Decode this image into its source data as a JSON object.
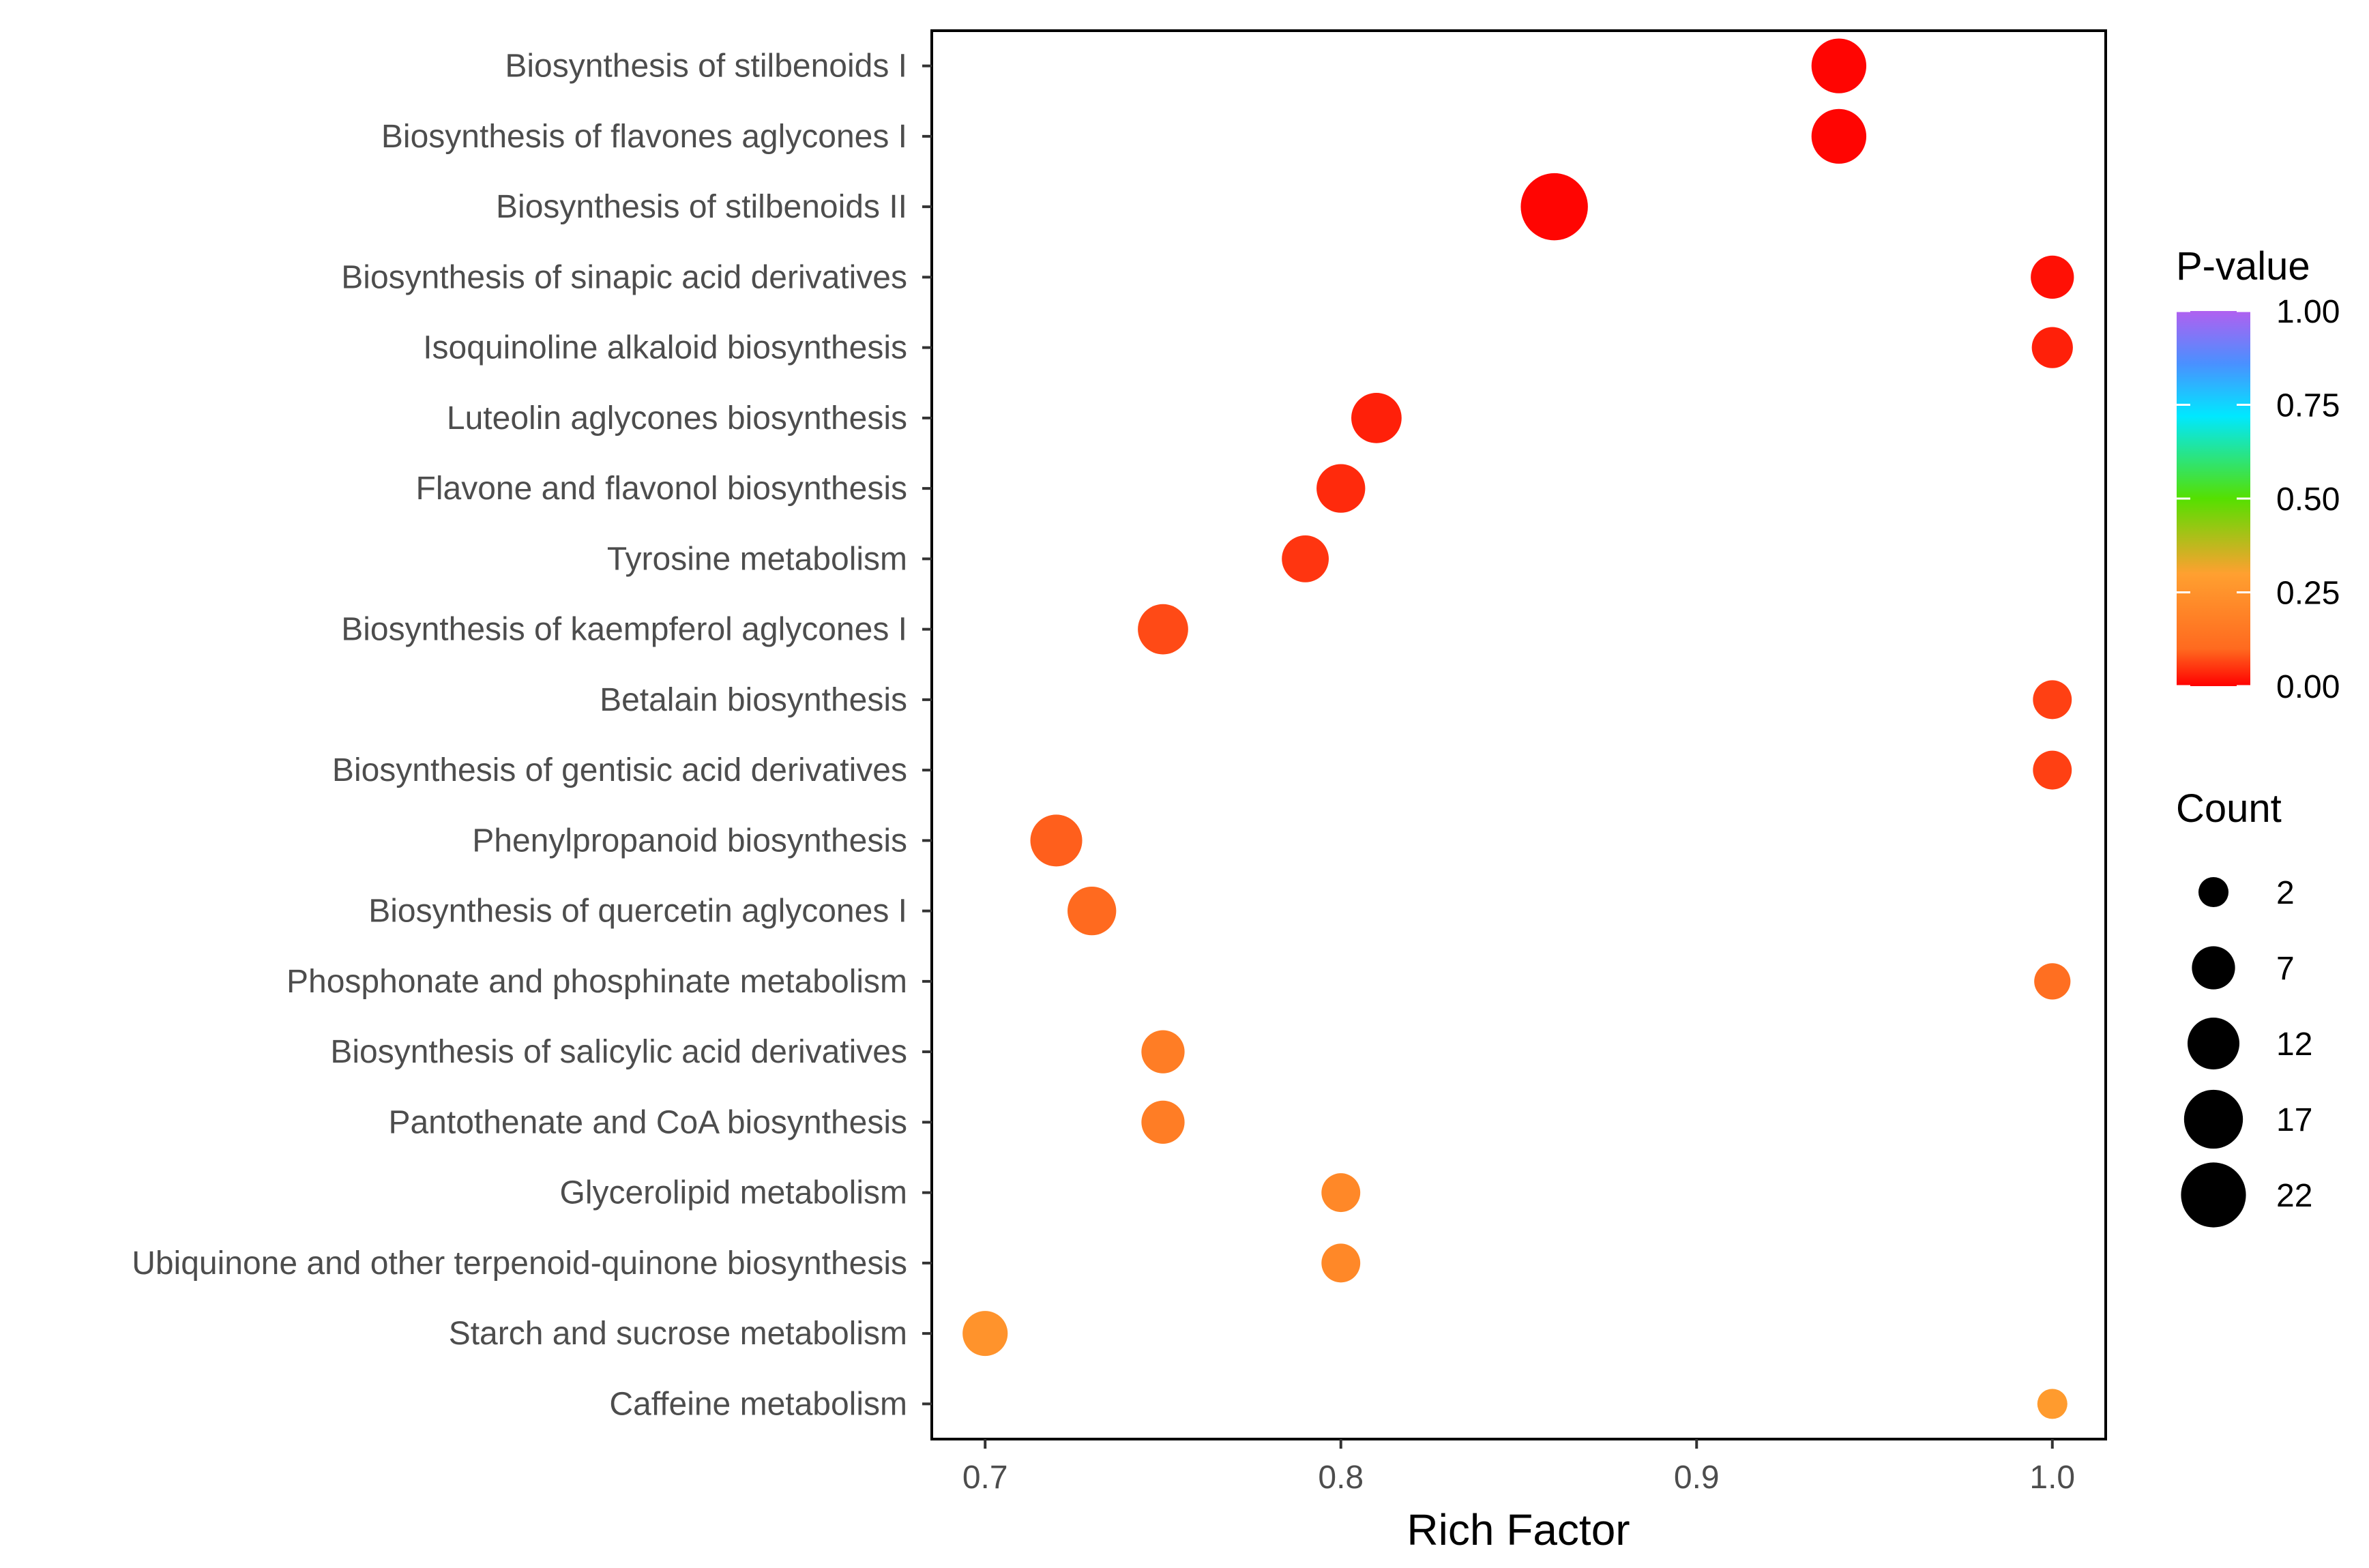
{
  "chart_data": {
    "type": "scatter",
    "title": "",
    "xlabel": "Rich Factor",
    "ylabel": "",
    "xlim": [
      0.685,
      1.015
    ],
    "x_ticks": [
      0.7,
      0.8,
      0.9,
      1.0
    ],
    "x_tick_labels": [
      "0.7",
      "0.8",
      "0.9",
      "1.0"
    ],
    "grid": false,
    "points": [
      {
        "pathway": "Biosynthesis of stilbenoids I",
        "rich_factor": 0.94,
        "p_value": 0.005,
        "count": 14
      },
      {
        "pathway": "Biosynthesis of flavones aglycones I",
        "rich_factor": 0.94,
        "p_value": 0.005,
        "count": 14
      },
      {
        "pathway": "Biosynthesis of stilbenoids II",
        "rich_factor": 0.86,
        "p_value": 0.005,
        "count": 24
      },
      {
        "pathway": "Biosynthesis of sinapic acid derivatives",
        "rich_factor": 1.0,
        "p_value": 0.015,
        "count": 7
      },
      {
        "pathway": "Isoquinoline alkaloid biosynthesis",
        "rich_factor": 1.0,
        "p_value": 0.03,
        "count": 6
      },
      {
        "pathway": "Luteolin aglycones biosynthesis",
        "rich_factor": 0.81,
        "p_value": 0.03,
        "count": 11
      },
      {
        "pathway": "Flavone and flavonol biosynthesis",
        "rich_factor": 0.8,
        "p_value": 0.04,
        "count": 10
      },
      {
        "pathway": "Tyrosine metabolism",
        "rich_factor": 0.79,
        "p_value": 0.05,
        "count": 9
      },
      {
        "pathway": "Biosynthesis of kaempferol aglycones I",
        "rich_factor": 0.75,
        "p_value": 0.07,
        "count": 11
      },
      {
        "pathway": "Betalain biosynthesis",
        "rich_factor": 1.0,
        "p_value": 0.06,
        "count": 5
      },
      {
        "pathway": "Biosynthesis of gentisic acid derivatives",
        "rich_factor": 1.0,
        "p_value": 0.06,
        "count": 5
      },
      {
        "pathway": "Phenylpropanoid biosynthesis",
        "rich_factor": 0.72,
        "p_value": 0.09,
        "count": 12
      },
      {
        "pathway": "Biosynthesis of quercetin aglycones I",
        "rich_factor": 0.73,
        "p_value": 0.1,
        "count": 10
      },
      {
        "pathway": "Phosphonate and phosphinate metabolism",
        "rich_factor": 1.0,
        "p_value": 0.12,
        "count": 4
      },
      {
        "pathway": "Biosynthesis of salicylic acid derivatives",
        "rich_factor": 0.75,
        "p_value": 0.17,
        "count": 7
      },
      {
        "pathway": "Pantothenate and CoA biosynthesis",
        "rich_factor": 0.75,
        "p_value": 0.17,
        "count": 7
      },
      {
        "pathway": "Glycerolipid metabolism",
        "rich_factor": 0.8,
        "p_value": 0.21,
        "count": 5
      },
      {
        "pathway": "Ubiquinone and other terpenoid-quinone biosynthesis",
        "rich_factor": 0.8,
        "p_value": 0.21,
        "count": 5
      },
      {
        "pathway": "Starch and sucrose metabolism",
        "rich_factor": 0.7,
        "p_value": 0.25,
        "count": 8
      },
      {
        "pathway": "Caffeine metabolism",
        "rich_factor": 1.0,
        "p_value": 0.28,
        "count": 2
      }
    ],
    "color_legend": {
      "title": "P-value",
      "ticks": [
        0.0,
        0.25,
        0.5,
        0.75,
        1.0
      ],
      "tick_labels": [
        "0.00",
        "0.25",
        "0.50",
        "0.75",
        "1.00"
      ],
      "colors": [
        "#ff0000",
        "#ff6a1f",
        "#ffa030",
        "#55e000",
        "#00e8ff",
        "#4a90ff",
        "#b060f0"
      ],
      "color_stops": [
        0.0,
        0.1,
        0.3,
        0.5,
        0.72,
        0.86,
        1.0
      ]
    },
    "size_legend": {
      "title": "Count",
      "values": [
        2,
        7,
        12,
        17,
        22
      ],
      "labels": [
        "2",
        "7",
        "12",
        "17",
        "22"
      ],
      "point_color": "#000000"
    }
  }
}
